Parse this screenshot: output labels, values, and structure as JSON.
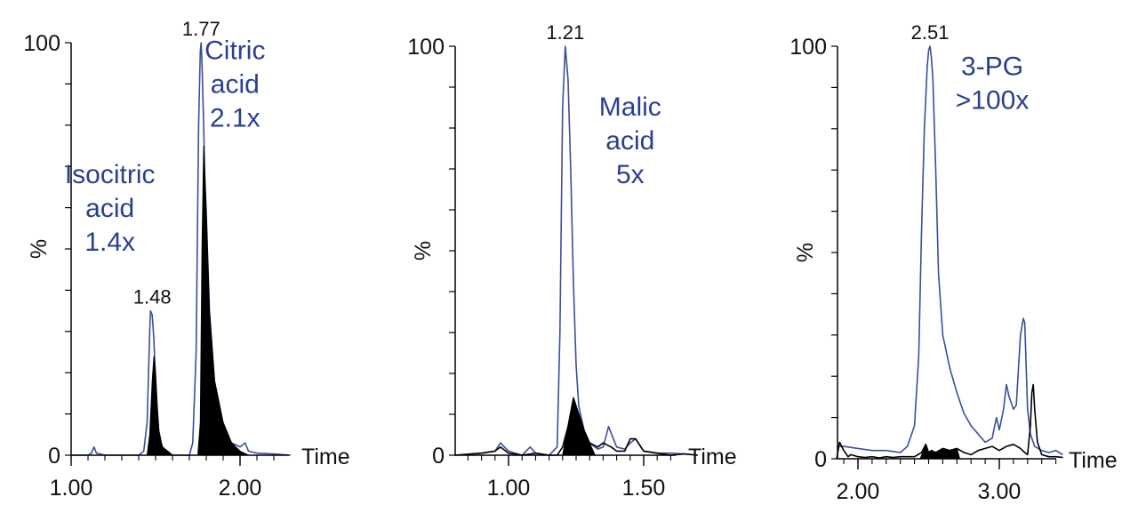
{
  "colors": {
    "blue": "#3b4f99",
    "black": "#000000",
    "note": "#2b3f8f"
  },
  "chart_data": [
    {
      "type": "line",
      "xlabel": "Time",
      "ylabel": "%",
      "xlim": [
        1.0,
        2.3
      ],
      "ylim": [
        0,
        100
      ],
      "x_ticks": [
        "1.00",
        "2.00"
      ],
      "y_ticks": [
        "0",
        "100"
      ],
      "peak_labels": [
        {
          "x": 1.48,
          "y": 35,
          "text": "1.48"
        },
        {
          "x": 1.77,
          "y": 100,
          "text": "1.77"
        }
      ],
      "annotations": [
        {
          "lines": [
            "Isocitric",
            "acid",
            "1.4x"
          ],
          "x": 1.23,
          "y": 66
        },
        {
          "lines": [
            "Citric",
            "acid",
            "2.1x"
          ],
          "x": 1.97,
          "y": 96
        }
      ],
      "series": [
        {
          "style": "blue-line",
          "x": [
            1.0,
            1.1,
            1.12,
            1.135,
            1.15,
            1.2,
            1.3,
            1.4,
            1.43,
            1.45,
            1.465,
            1.47,
            1.48,
            1.49,
            1.5,
            1.51,
            1.52,
            1.54,
            1.57,
            1.6,
            1.65,
            1.7,
            1.72,
            1.74,
            1.755,
            1.765,
            1.77,
            1.775,
            1.785,
            1.8,
            1.82,
            1.85,
            1.9,
            1.95,
            2.0,
            2.03,
            2.05,
            2.1,
            2.2,
            2.3
          ],
          "y": [
            0,
            0,
            0.5,
            2,
            0.5,
            0,
            0,
            0,
            1,
            8,
            30,
            35,
            34,
            28,
            18,
            10,
            5,
            2,
            1,
            0,
            0,
            0,
            3,
            25,
            80,
            98,
            100,
            95,
            80,
            50,
            28,
            13,
            6,
            3,
            2,
            3,
            1,
            0.5,
            0.3,
            0
          ]
        },
        {
          "style": "black-filled",
          "x": [
            1.45,
            1.465,
            1.48,
            1.49,
            1.5,
            1.51,
            1.52,
            1.54,
            1.57,
            1.6,
            1.75,
            1.765,
            1.775,
            1.785,
            1.8,
            1.82,
            1.85,
            1.9,
            1.95,
            2.0,
            2.05
          ],
          "y": [
            0,
            5,
            18,
            24,
            20,
            12,
            6,
            2,
            1,
            0,
            0,
            8,
            50,
            75,
            60,
            35,
            18,
            8,
            3,
            1,
            0
          ]
        }
      ]
    },
    {
      "type": "line",
      "xlabel": "Time",
      "ylabel": "%",
      "xlim": [
        0.8,
        1.7
      ],
      "ylim": [
        0,
        100
      ],
      "x_ticks": [
        "1.00",
        "1.50"
      ],
      "y_ticks": [
        "0",
        "100"
      ],
      "peak_labels": [
        {
          "x": 1.21,
          "y": 100,
          "text": "1.21"
        }
      ],
      "annotations": [
        {
          "lines": [
            "Malic",
            "acid",
            "5x"
          ],
          "x": 1.45,
          "y": 83
        }
      ],
      "series": [
        {
          "style": "blue-line",
          "x": [
            0.8,
            0.9,
            0.95,
            0.97,
            1.0,
            1.05,
            1.08,
            1.1,
            1.15,
            1.18,
            1.19,
            1.2,
            1.21,
            1.22,
            1.23,
            1.24,
            1.25,
            1.26,
            1.28,
            1.3,
            1.33,
            1.35,
            1.37,
            1.4,
            1.43,
            1.45,
            1.47,
            1.5,
            1.55,
            1.6,
            1.65,
            1.7
          ],
          "y": [
            0,
            0.5,
            1,
            3,
            1,
            0,
            2,
            0.5,
            0,
            2,
            30,
            85,
            100,
            92,
            70,
            42,
            22,
            12,
            6,
            3,
            1.5,
            2,
            7,
            2,
            1.5,
            3,
            4,
            1,
            0.5,
            0.5,
            0.3,
            0
          ]
        },
        {
          "style": "black-line",
          "x": [
            0.8,
            0.9,
            0.95,
            0.97,
            1.0,
            1.05,
            1.1,
            1.15,
            1.18,
            1.2,
            1.22,
            1.24,
            1.26,
            1.28,
            1.3,
            1.33,
            1.35,
            1.38,
            1.4,
            1.43,
            1.45,
            1.47,
            1.5,
            1.55,
            1.6,
            1.65,
            1.7
          ],
          "y": [
            0,
            0.5,
            1,
            2,
            0.5,
            0,
            0.5,
            0,
            0,
            2,
            7,
            14,
            10,
            6,
            3,
            2,
            3,
            2,
            1,
            1,
            4,
            4,
            1,
            0.5,
            0,
            0.3,
            0
          ]
        },
        {
          "style": "black-filled",
          "x": [
            1.2,
            1.22,
            1.24,
            1.26,
            1.28,
            1.3,
            1.32
          ],
          "y": [
            0,
            7,
            14,
            10,
            6,
            3,
            0
          ]
        }
      ]
    },
    {
      "type": "line",
      "xlabel": "Time",
      "ylabel": "%",
      "xlim": [
        1.85,
        3.45
      ],
      "ylim": [
        0,
        100
      ],
      "x_ticks": [
        "2.00",
        "3.00"
      ],
      "y_ticks": [
        "0",
        "100"
      ],
      "peak_labels": [
        {
          "x": 2.51,
          "y": 100,
          "text": "2.51"
        }
      ],
      "annotations": [
        {
          "lines": [
            "3-PG",
            ">100x"
          ],
          "x": 2.95,
          "y": 93
        }
      ],
      "series": [
        {
          "style": "blue-line",
          "x": [
            1.85,
            1.9,
            2.0,
            2.1,
            2.2,
            2.3,
            2.35,
            2.4,
            2.43,
            2.45,
            2.47,
            2.49,
            2.5,
            2.51,
            2.52,
            2.53,
            2.55,
            2.57,
            2.6,
            2.65,
            2.7,
            2.75,
            2.8,
            2.85,
            2.9,
            2.95,
            2.98,
            3.0,
            3.03,
            3.05,
            3.07,
            3.1,
            3.12,
            3.15,
            3.17,
            3.18,
            3.2,
            3.22,
            3.25,
            3.3,
            3.35,
            3.4,
            3.45
          ],
          "y": [
            3,
            3,
            2.5,
            2,
            2,
            1.5,
            3,
            8,
            25,
            55,
            80,
            95,
            99,
            100,
            97,
            92,
            70,
            45,
            30,
            22,
            16,
            11,
            8,
            6,
            4,
            5,
            10,
            7,
            12,
            18,
            15,
            12,
            13,
            30,
            34,
            33,
            12,
            6,
            3,
            2,
            1.5,
            2,
            1
          ]
        },
        {
          "style": "black-line",
          "x": [
            1.85,
            1.87,
            1.9,
            1.93,
            1.95,
            2.0,
            2.05,
            2.1,
            2.15,
            2.2,
            2.25,
            2.3,
            2.35,
            2.4,
            2.45,
            2.48,
            2.5,
            2.52,
            2.55,
            2.6,
            2.65,
            2.7,
            2.75,
            2.8,
            2.85,
            2.9,
            2.95,
            3.0,
            3.05,
            3.1,
            3.15,
            3.18,
            3.2,
            3.22,
            3.23,
            3.24,
            3.25,
            3.27,
            3.3,
            3.35,
            3.4,
            3.45
          ],
          "y": [
            0,
            4,
            2,
            0.5,
            1,
            0.5,
            0.3,
            0.5,
            0.2,
            0.5,
            0.3,
            0.5,
            0.5,
            0.5,
            1.5,
            3.5,
            1.5,
            2,
            1.5,
            2.5,
            2,
            2.5,
            1.5,
            1,
            2,
            2.5,
            3,
            2,
            3,
            3.5,
            2.5,
            1.5,
            1,
            8,
            16,
            18,
            12,
            4,
            1,
            0.5,
            0.5,
            0.3
          ]
        },
        {
          "style": "black-filled",
          "x": [
            2.44,
            2.48,
            2.5,
            2.52,
            2.55,
            2.6,
            2.65,
            2.7,
            2.72
          ],
          "y": [
            0,
            3.5,
            1.5,
            2,
            1.5,
            2.5,
            2,
            2.5,
            0
          ]
        }
      ]
    }
  ]
}
